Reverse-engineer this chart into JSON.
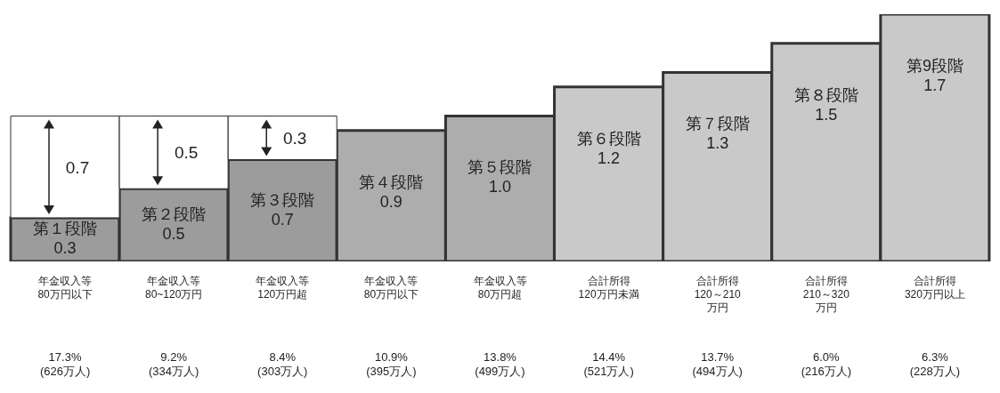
{
  "chart_data": {
    "type": "bar",
    "stacked": true,
    "categories": [
      "年金収入等\n80万円以下",
      "年金収入等\n80~120万円",
      "年金収入等\n120万円超",
      "年金収入等\n80万円以下",
      "年金収入等\n80万円超",
      "合計所得\n120万円未満",
      "合計所得\n120～210\n万円",
      "合計所得\n210～320\n万円",
      "合計所得\n320万円以上"
    ],
    "series": [
      {
        "colors": [
          "#9c9c9c",
          "#9c9c9c",
          "#9c9c9c",
          "#adadad",
          "#adadad",
          "#c9c9c9",
          "#c9c9c9",
          "#c9c9c9",
          "#c9c9c9"
        ],
        "values": [
          0.3,
          0.5,
          0.7,
          0.9,
          1.0,
          1.2,
          1.3,
          1.5,
          1.7
        ],
        "value_labels": [
          "第１段階\n0.3",
          "第２段階\n0.5",
          "第３段階\n0.7",
          "第４段階\n0.9",
          "第５段階\n1.0",
          "第６段階\n1.2",
          "第７段階\n1.3",
          "第８段階\n1.5",
          "第9段階\n1.7"
        ]
      },
      {
        "color": "#ffffff",
        "values": [
          0.7,
          0.5,
          0.3,
          null,
          null,
          null,
          null,
          null,
          null
        ],
        "value_labels": [
          "0.7",
          "0.5",
          "0.3",
          null,
          null,
          null,
          null,
          null,
          null
        ]
      }
    ],
    "annotations": [
      "17.3%\n(626万人)",
      "9.2%\n(334万人)",
      "8.4%\n(303万人)",
      "10.9%\n(395万人)",
      "13.8%\n(499万人)",
      "14.4%\n(521万人)",
      "13.7%\n(494万人)",
      "6.0%\n(216万人)",
      "6.3%\n(228万人)"
    ]
  }
}
